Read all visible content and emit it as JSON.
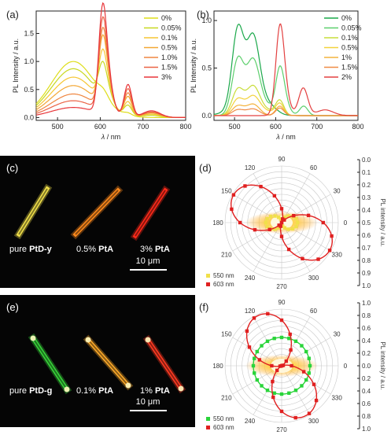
{
  "chart_data": [
    {
      "id": "a",
      "panel_label": "(a)",
      "type": "line",
      "xlabel_sym": "λ",
      "xlabel_unit": " / nm",
      "ylabel": "PL Intensity / a.u.",
      "xlim": [
        450,
        800
      ],
      "ylim": [
        -0.05,
        1.9
      ],
      "xticks": [
        500,
        600,
        700,
        800
      ],
      "yticks": [
        "0.0",
        "0.5",
        "1.0",
        "1.5"
      ],
      "legend_placement": "top-right",
      "series": [
        {
          "name": "0%",
          "color": "#dede1a",
          "peaks": [
            [
              537,
              1.0,
              52
            ],
            [
              608,
              0.12,
              12
            ],
            [
              665,
              0.04,
              9
            ]
          ]
        },
        {
          "name": "0.05%",
          "color": "#c8d820",
          "peaks": [
            [
              537,
              0.87,
              52
            ],
            [
              605,
              0.48,
              9
            ],
            [
              617,
              0.25,
              12
            ],
            [
              665,
              0.18,
              9
            ],
            [
              720,
              0.04,
              20
            ]
          ]
        },
        {
          "name": "0.1%",
          "color": "#f6c633",
          "peaks": [
            [
              537,
              0.72,
              52
            ],
            [
              605,
              0.7,
              9
            ],
            [
              617,
              0.35,
              12
            ],
            [
              665,
              0.25,
              9
            ],
            [
              720,
              0.06,
              20
            ]
          ]
        },
        {
          "name": "0.5%",
          "color": "#f3a735",
          "peaks": [
            [
              537,
              0.57,
              52
            ],
            [
              605,
              0.95,
              9
            ],
            [
              617,
              0.45,
              12
            ],
            [
              665,
              0.35,
              9
            ],
            [
              720,
              0.08,
              20
            ]
          ]
        },
        {
          "name": "1.0%",
          "color": "#ef8640",
          "peaks": [
            [
              537,
              0.42,
              52
            ],
            [
              605,
              1.1,
              9
            ],
            [
              617,
              0.52,
              12
            ],
            [
              665,
              0.42,
              9
            ],
            [
              720,
              0.09,
              20
            ]
          ]
        },
        {
          "name": "1.5%",
          "color": "#eb6346",
          "peaks": [
            [
              537,
              0.3,
              52
            ],
            [
              605,
              1.3,
              9
            ],
            [
              617,
              0.58,
              12
            ],
            [
              665,
              0.5,
              9
            ],
            [
              720,
              0.1,
              20
            ]
          ]
        },
        {
          "name": "3%",
          "color": "#e8363a",
          "peaks": [
            [
              537,
              0.18,
              52
            ],
            [
              605,
              1.55,
              9
            ],
            [
              617,
              0.65,
              12
            ],
            [
              665,
              0.58,
              9
            ],
            [
              720,
              0.12,
              20
            ]
          ]
        }
      ]
    },
    {
      "id": "b",
      "panel_label": "(b)",
      "type": "line",
      "xlabel_sym": "λ",
      "xlabel_unit": " / nm",
      "ylabel": "PL Intensity / a.u.",
      "xlim": [
        450,
        800
      ],
      "ylim": [
        -0.05,
        1.1
      ],
      "xticks": [
        500,
        600,
        700,
        800
      ],
      "yticks": [
        "0.0",
        "0.5",
        "1.0"
      ],
      "legend_placement": "top-right",
      "series": [
        {
          "name": "0%",
          "color": "#1aa84a",
          "peaks": [
            [
              508,
              0.85,
              14
            ],
            [
              545,
              0.8,
              16
            ],
            [
              580,
              0.12,
              20
            ],
            [
              500,
              0.05,
              30
            ]
          ]
        },
        {
          "name": "0.05%",
          "color": "#5ccf6c",
          "peaks": [
            [
              508,
              0.58,
              14
            ],
            [
              545,
              0.57,
              16
            ],
            [
              580,
              0.09,
              20
            ],
            [
              610,
              0.42,
              10
            ],
            [
              622,
              0.12,
              12
            ],
            [
              668,
              0.1,
              10
            ]
          ]
        },
        {
          "name": "0.1%",
          "color": "#c9dd3a",
          "peaks": [
            [
              508,
              0.27,
              14
            ],
            [
              545,
              0.3,
              16
            ],
            [
              580,
              0.05,
              20
            ],
            [
              610,
              0.15,
              10
            ]
          ]
        },
        {
          "name": "0.5%",
          "color": "#f3d23c",
          "peaks": [
            [
              508,
              0.17,
              14
            ],
            [
              545,
              0.2,
              16
            ],
            [
              580,
              0.04,
              20
            ],
            [
              610,
              0.12,
              10
            ]
          ]
        },
        {
          "name": "1%",
          "color": "#f4b33d",
          "peaks": [
            [
              508,
              0.1,
              14
            ],
            [
              545,
              0.12,
              16
            ],
            [
              610,
              0.1,
              10
            ]
          ]
        },
        {
          "name": "1.5%",
          "color": "#ef8c46",
          "peaks": [
            [
              508,
              0.06,
              14
            ],
            [
              545,
              0.07,
              16
            ],
            [
              610,
              0.08,
              10
            ]
          ]
        },
        {
          "name": "2%",
          "color": "#e34040",
          "peaks": [
            [
              610,
              0.84,
              10
            ],
            [
              622,
              0.2,
              12
            ],
            [
              667,
              0.29,
              11
            ],
            [
              720,
              0.06,
              20
            ]
          ]
        }
      ]
    }
  ],
  "micro_c": {
    "panel_label": "(c)",
    "labels": [
      {
        "pre": "pure ",
        "bold": "PtD-y"
      },
      {
        "pre": "0.5% ",
        "bold": "PtA"
      },
      {
        "pre": "3% ",
        "bold": "PtA"
      }
    ],
    "colors": [
      "#f1e04a",
      "#ff8a1c",
      "#ff2a1a"
    ],
    "scale": "10 μm"
  },
  "micro_e": {
    "panel_label": "(e)",
    "labels": [
      {
        "pre": "pure ",
        "bold": "PtD-g"
      },
      {
        "pre": "0.1% ",
        "bold": "PtA"
      },
      {
        "pre": "1% ",
        "bold": "PtA"
      }
    ],
    "colors": [
      "#38d43a",
      "#ffab2a",
      "#ff3a22"
    ],
    "scale": "10 μm"
  },
  "polar_d": {
    "panel_label": "(d)",
    "angle_labels": [
      "0",
      "30",
      "60",
      "90",
      "120",
      "150",
      "180",
      "210",
      "240",
      "270",
      "300",
      "330"
    ],
    "r_label": "PL intensity / a.u.",
    "r_ticks": [
      "0.0",
      "0.1",
      "0.2",
      "0.3",
      "0.4",
      "0.5",
      "0.6",
      "0.7",
      "0.8",
      "0.9",
      "1.0"
    ],
    "legend": [
      {
        "name": "550 nm",
        "color": "#f1e04a"
      },
      {
        "name": "603 nm",
        "color": "#e02020"
      }
    ],
    "series": [
      {
        "name": "550 nm",
        "color": "#f1e04a",
        "cos2_amp": 0.23,
        "offset": 0.05,
        "phase_deg": 0
      },
      {
        "name": "603 nm",
        "color": "#e02020",
        "cos2_amp": 0.98,
        "offset": 0.0,
        "phase_deg": 150
      }
    ]
  },
  "polar_f": {
    "panel_label": "(f)",
    "angle_labels": [
      "0",
      "30",
      "60",
      "90",
      "120",
      "150",
      "180",
      "210",
      "240",
      "270",
      "300",
      "330"
    ],
    "r_label": "PL intensity / a.u.",
    "r_ticks": [
      "1.0",
      "0.8",
      "0.6",
      "0.4",
      "0.2",
      "0.0",
      "0.2",
      "0.4",
      "0.6",
      "0.8",
      "1.0"
    ],
    "legend": [
      {
        "name": "550 nm",
        "color": "#2ad43a"
      },
      {
        "name": "603 nm",
        "color": "#e02020"
      }
    ],
    "series": [
      {
        "name": "550 nm",
        "color": "#2ad43a",
        "cos2_amp": 0.0,
        "offset": 0.5,
        "phase_deg": 0
      },
      {
        "name": "603 nm",
        "color": "#e02020",
        "cos2_amp": 0.98,
        "offset": 0.0,
        "phase_deg": 115
      }
    ]
  }
}
